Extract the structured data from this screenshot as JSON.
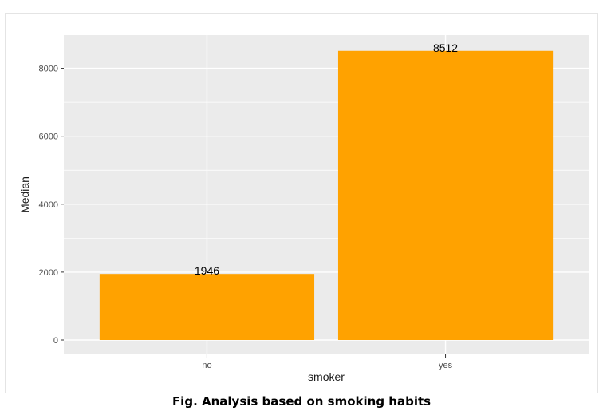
{
  "caption": "Fig. Analysis based on smoking habits",
  "chart_data": {
    "type": "bar",
    "categories": [
      "no",
      "yes"
    ],
    "values": [
      1946,
      8512
    ],
    "data_labels": [
      "1946",
      "8512"
    ],
    "xlabel": "smoker",
    "ylabel": "Median",
    "ylim": [
      0,
      9000
    ],
    "yticks": [
      0,
      2000,
      4000,
      6000,
      8000
    ],
    "ytick_labels": [
      "0",
      "2000",
      "4000",
      "6000",
      "8000"
    ],
    "grid": true,
    "legend": "none",
    "colors": {
      "bar": "#ffa200",
      "panel": "#ebebeb",
      "grid": "#ffffff"
    }
  }
}
